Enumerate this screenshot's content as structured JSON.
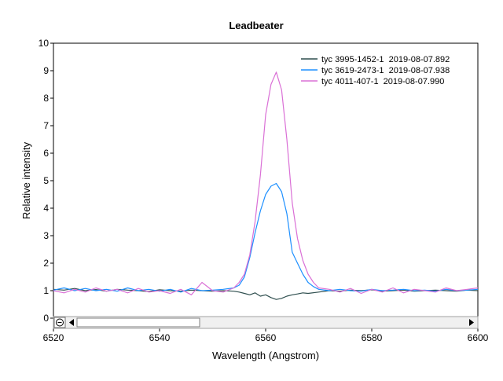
{
  "chart_data": {
    "type": "line",
    "title": "Leadbeater",
    "xlabel": "Wavelength (Angstrom)",
    "ylabel": "Relative intensity",
    "xlim": [
      6520,
      6600
    ],
    "ylim": [
      0,
      10
    ],
    "x_ticks": [
      6520,
      6540,
      6560,
      6580,
      6600
    ],
    "y_ticks": [
      0,
      1,
      2,
      3,
      4,
      5,
      6,
      7,
      8,
      9,
      10
    ],
    "grid": false,
    "legend_position": "top-right",
    "series": [
      {
        "name": "tyc 3995-1452-1  2019-08-07.892",
        "color": "#2f4f4f",
        "x": [
          6520,
          6522,
          6524,
          6526,
          6528,
          6530,
          6532,
          6534,
          6536,
          6538,
          6540,
          6542,
          6544,
          6546,
          6548,
          6550,
          6552,
          6554,
          6555,
          6556,
          6557,
          6558,
          6559,
          6560,
          6561,
          6562,
          6563,
          6564,
          6565,
          6566,
          6567,
          6568,
          6570,
          6572,
          6574,
          6576,
          6578,
          6580,
          6582,
          6584,
          6586,
          6588,
          6590,
          6592,
          6594,
          6596,
          6598,
          6600
        ],
        "y": [
          1.05,
          1.02,
          1.08,
          1.0,
          1.04,
          0.98,
          1.05,
          1.02,
          1.0,
          0.97,
          1.03,
          1.0,
          0.98,
          1.02,
          1.0,
          0.98,
          1.0,
          0.98,
          0.95,
          0.9,
          0.85,
          0.92,
          0.8,
          0.85,
          0.75,
          0.68,
          0.72,
          0.8,
          0.85,
          0.88,
          0.92,
          0.9,
          0.95,
          1.0,
          0.98,
          1.02,
          1.0,
          1.03,
          0.98,
          1.0,
          1.02,
          0.98,
          1.0,
          1.02,
          1.0,
          0.98,
          1.02,
          1.0
        ]
      },
      {
        "name": "tyc 3619-2473-1  2019-08-07.938",
        "color": "#1e90ff",
        "x": [
          6520,
          6522,
          6524,
          6526,
          6528,
          6530,
          6532,
          6534,
          6536,
          6538,
          6540,
          6542,
          6544,
          6546,
          6548,
          6550,
          6552,
          6554,
          6555,
          6556,
          6557,
          6558,
          6559,
          6560,
          6561,
          6562,
          6563,
          6564,
          6565,
          6566,
          6567,
          6568,
          6569,
          6570,
          6572,
          6574,
          6576,
          6578,
          6580,
          6582,
          6584,
          6586,
          6588,
          6590,
          6592,
          6594,
          6596,
          6598,
          6600
        ],
        "y": [
          1.02,
          1.1,
          1.0,
          1.08,
          1.0,
          1.05,
          0.98,
          1.1,
          1.0,
          1.05,
          0.98,
          1.05,
          0.95,
          1.08,
          1.0,
          1.02,
          1.05,
          1.1,
          1.2,
          1.5,
          2.2,
          3.1,
          3.9,
          4.5,
          4.8,
          4.9,
          4.6,
          3.8,
          2.4,
          2.0,
          1.6,
          1.3,
          1.15,
          1.05,
          1.0,
          1.05,
          1.0,
          0.98,
          1.05,
          1.0,
          1.02,
          1.05,
          1.0,
          1.02,
          0.98,
          1.05,
          1.0,
          1.02,
          1.05
        ]
      },
      {
        "name": "tyc 4011-407-1  2019-08-07.990",
        "color": "#da70d6",
        "x": [
          6520,
          6522,
          6524,
          6526,
          6528,
          6530,
          6532,
          6534,
          6536,
          6538,
          6540,
          6542,
          6544,
          6546,
          6548,
          6550,
          6552,
          6554,
          6555,
          6556,
          6557,
          6558,
          6559,
          6560,
          6561,
          6562,
          6563,
          6564,
          6565,
          6566,
          6567,
          6568,
          6569,
          6570,
          6572,
          6574,
          6576,
          6578,
          6580,
          6582,
          6584,
          6586,
          6588,
          6590,
          6592,
          6594,
          6596,
          6598,
          6600
        ],
        "y": [
          1.0,
          0.92,
          1.05,
          0.95,
          1.1,
          0.98,
          1.05,
          0.92,
          1.08,
          0.95,
          1.0,
          0.9,
          1.05,
          0.85,
          1.3,
          1.0,
          0.95,
          1.1,
          1.3,
          1.6,
          2.3,
          3.5,
          5.2,
          7.4,
          8.5,
          8.95,
          8.3,
          6.5,
          4.2,
          2.9,
          2.1,
          1.6,
          1.3,
          1.1,
          1.05,
          0.95,
          1.08,
          0.9,
          1.05,
          0.95,
          1.1,
          0.92,
          1.05,
          1.0,
          0.95,
          1.1,
          1.0,
          1.05,
          1.1
        ]
      }
    ]
  }
}
